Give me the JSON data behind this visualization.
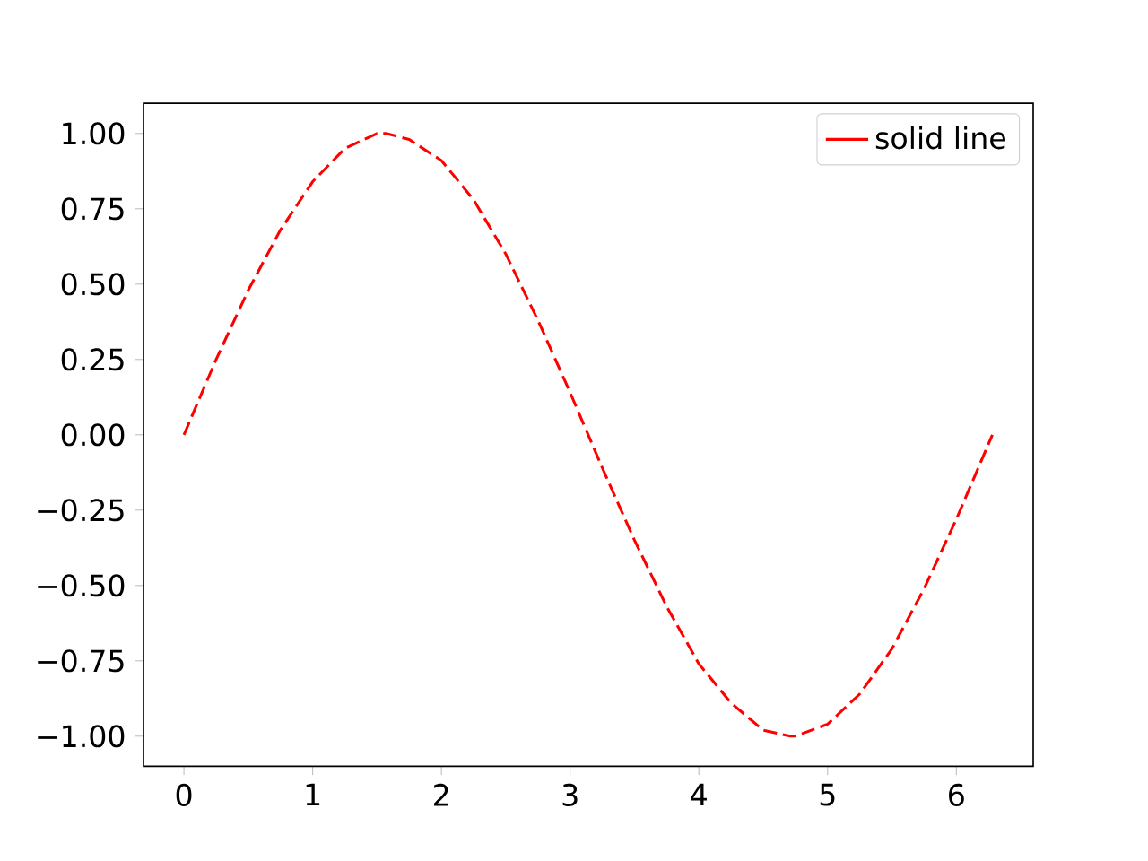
{
  "chart_data": {
    "type": "line",
    "x": [
      0,
      0.25,
      0.5,
      0.75,
      1,
      1.25,
      1.5,
      1.57,
      1.75,
      2,
      2.25,
      2.5,
      2.75,
      3,
      3.25,
      3.5,
      3.75,
      4,
      4.25,
      4.5,
      4.71,
      4.75,
      5,
      5.25,
      5.5,
      5.75,
      6,
      6.28
    ],
    "series": [
      {
        "name": "solid line",
        "color": "#ff0000",
        "values": [
          0,
          0.25,
          0.48,
          0.68,
          0.84,
          0.95,
          1.0,
          1.0,
          0.98,
          0.91,
          0.78,
          0.6,
          0.38,
          0.14,
          -0.11,
          -0.35,
          -0.57,
          -0.76,
          -0.89,
          -0.98,
          -1.0,
          -1.0,
          -0.96,
          -0.86,
          -0.71,
          -0.51,
          -0.28,
          0.0
        ]
      }
    ],
    "line_style": "dashed",
    "marker": "none",
    "legend": "top right",
    "grid": false,
    "xlim": [
      -0.314,
      6.597
    ],
    "ylim": [
      -1.1,
      1.1
    ],
    "xticks": [
      0,
      1,
      2,
      3,
      4,
      5,
      6
    ],
    "yticks": [
      {
        "value": -1.0,
        "label": "−1.00"
      },
      {
        "value": -0.75,
        "label": "−0.75"
      },
      {
        "value": -0.5,
        "label": "−0.50"
      },
      {
        "value": -0.25,
        "label": "−0.25"
      },
      {
        "value": 0.0,
        "label": "0.00"
      },
      {
        "value": 0.25,
        "label": "0.25"
      },
      {
        "value": 0.5,
        "label": "0.50"
      },
      {
        "value": 0.75,
        "label": "0.75"
      },
      {
        "value": 1.0,
        "label": "1.00"
      }
    ]
  }
}
